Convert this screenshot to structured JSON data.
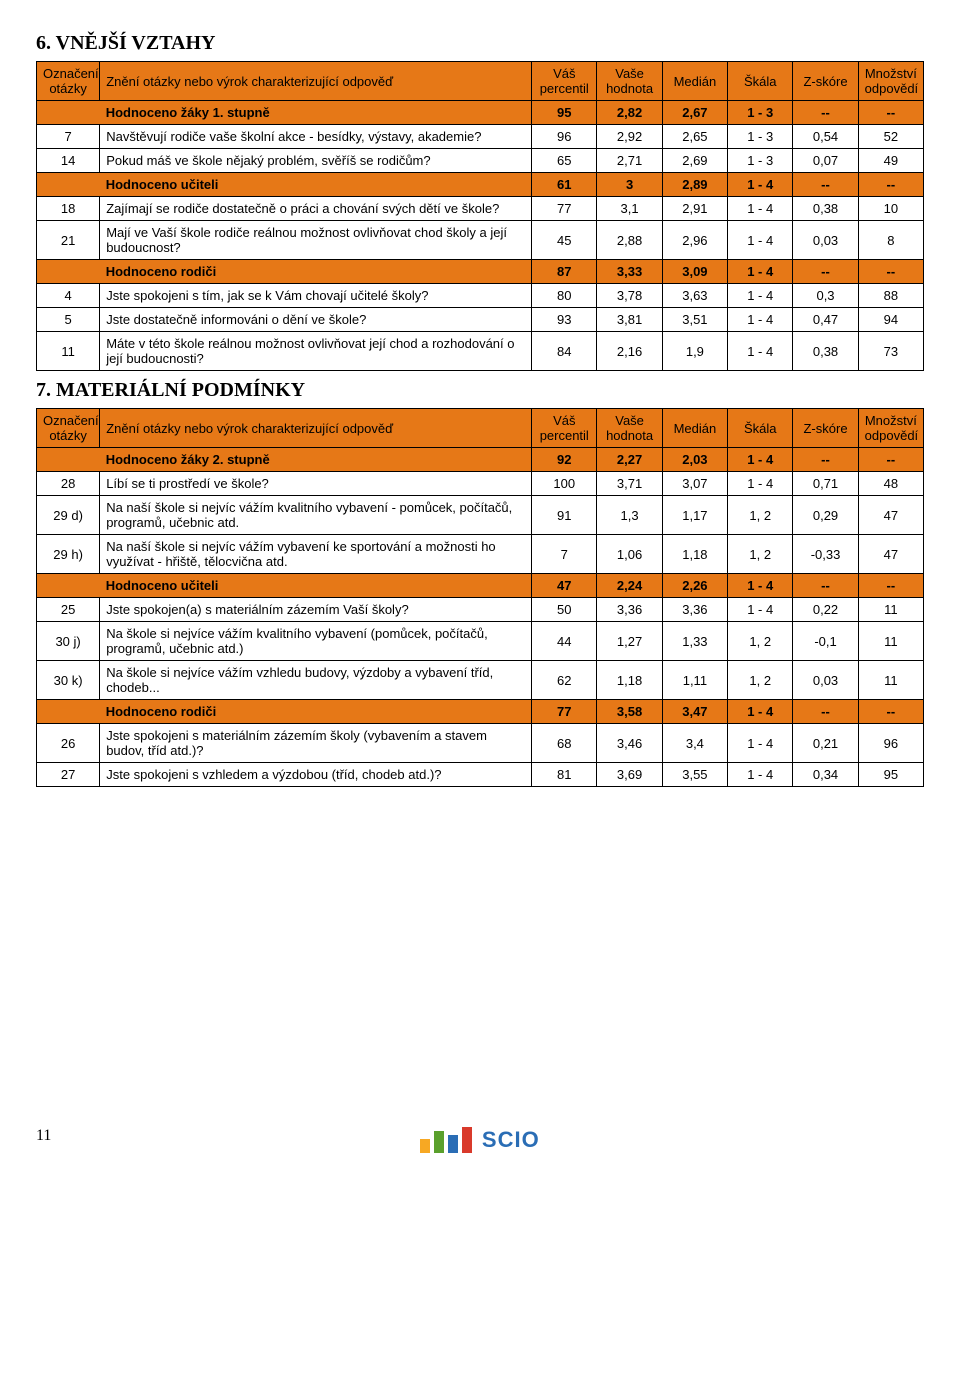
{
  "page_number": "11",
  "logo_text": "SCIO",
  "logo_bar_colors": [
    "#f7a823",
    "#5aa02c",
    "#2a6db5",
    "#d93a2b"
  ],
  "logo_bar_heights": [
    14,
    22,
    18,
    26
  ],
  "tables": [
    {
      "title": "6. VNĚJŠÍ VZTAHY",
      "headers": [
        "Označení otázky",
        "Znění otázky nebo výrok charakterizující odpověď",
        "Váš percentil",
        "Vaše hodnota",
        "Medián",
        "Škála",
        "Z-skóre",
        "Množství odpovědí"
      ],
      "rows": [
        {
          "type": "sub",
          "mark": "",
          "text": "Hodnoceno žáky 1. stupně",
          "c": [
            "95",
            "2,82",
            "2,67",
            "1 - 3",
            "--",
            "--"
          ]
        },
        {
          "type": "data",
          "mark": "7",
          "text": "Navštěvují rodiče vaše školní akce - besídky, výstavy, akademie?",
          "c": [
            "96",
            "2,92",
            "2,65",
            "1 - 3",
            "0,54",
            "52"
          ]
        },
        {
          "type": "data",
          "mark": "14",
          "text": "Pokud máš ve škole nějaký problém, svěříš se rodičům?",
          "c": [
            "65",
            "2,71",
            "2,69",
            "1 - 3",
            "0,07",
            "49"
          ]
        },
        {
          "type": "sub",
          "mark": "",
          "text": "Hodnoceno učiteli",
          "c": [
            "61",
            "3",
            "2,89",
            "1 - 4",
            "--",
            "--"
          ]
        },
        {
          "type": "data",
          "mark": "18",
          "text": "Zajímají se rodiče dostatečně o práci a chování svých dětí ve škole?",
          "c": [
            "77",
            "3,1",
            "2,91",
            "1 - 4",
            "0,38",
            "10"
          ]
        },
        {
          "type": "data",
          "mark": "21",
          "text": "Mají ve Vaší škole rodiče reálnou možnost ovlivňovat chod školy a její budoucnost?",
          "c": [
            "45",
            "2,88",
            "2,96",
            "1 - 4",
            "0,03",
            "8"
          ]
        },
        {
          "type": "sub",
          "mark": "",
          "text": "Hodnoceno rodiči",
          "c": [
            "87",
            "3,33",
            "3,09",
            "1 - 4",
            "--",
            "--"
          ]
        },
        {
          "type": "data",
          "mark": "4",
          "text": "Jste spokojeni s tím, jak se k Vám chovají učitelé školy?",
          "c": [
            "80",
            "3,78",
            "3,63",
            "1 - 4",
            "0,3",
            "88"
          ]
        },
        {
          "type": "data",
          "mark": "5",
          "text": "Jste dostatečně informováni o dění ve škole?",
          "c": [
            "93",
            "3,81",
            "3,51",
            "1 - 4",
            "0,47",
            "94"
          ]
        },
        {
          "type": "data",
          "mark": "11",
          "text": "Máte v této škole reálnou možnost ovlivňovat její chod a rozhodování o její budoucnosti?",
          "c": [
            "84",
            "2,16",
            "1,9",
            "1 - 4",
            "0,38",
            "73"
          ]
        }
      ]
    },
    {
      "title": "7. MATERIÁLNÍ PODMÍNKY",
      "headers": [
        "Označení otázky",
        "Znění otázky nebo výrok charakterizující odpověď",
        "Váš percentil",
        "Vaše hodnota",
        "Medián",
        "Škála",
        "Z-skóre",
        "Množství odpovědí"
      ],
      "rows": [
        {
          "type": "sub",
          "mark": "",
          "text": "Hodnoceno žáky 2. stupně",
          "c": [
            "92",
            "2,27",
            "2,03",
            "1 - 4",
            "--",
            "--"
          ]
        },
        {
          "type": "data",
          "mark": "28",
          "text": "Líbí se ti prostředí ve škole?",
          "c": [
            "100",
            "3,71",
            "3,07",
            "1 - 4",
            "0,71",
            "48"
          ]
        },
        {
          "type": "data",
          "mark": "29 d)",
          "text": "Na naší škole si nejvíc vážím kvalitního vybavení - pomůcek, počítačů, programů, učebnic atd.",
          "c": [
            "91",
            "1,3",
            "1,17",
            "1, 2",
            "0,29",
            "47"
          ]
        },
        {
          "type": "data",
          "mark": "29 h)",
          "text": "Na naší škole si nejvíc vážím vybavení ke sportování a možnosti ho využívat - hřiště, tělocvična atd.",
          "c": [
            "7",
            "1,06",
            "1,18",
            "1, 2",
            "-0,33",
            "47"
          ]
        },
        {
          "type": "sub",
          "mark": "",
          "text": "Hodnoceno učiteli",
          "c": [
            "47",
            "2,24",
            "2,26",
            "1 - 4",
            "--",
            "--"
          ]
        },
        {
          "type": "data",
          "mark": "25",
          "text": "Jste spokojen(a) s materiálním zázemím Vaší školy?",
          "c": [
            "50",
            "3,36",
            "3,36",
            "1 - 4",
            "0,22",
            "11"
          ]
        },
        {
          "type": "data",
          "mark": "30 j)",
          "text": "Na škole si nejvíce vážím kvalitního vybavení (pomůcek, počítačů, programů, učebnic atd.)",
          "c": [
            "44",
            "1,27",
            "1,33",
            "1, 2",
            "-0,1",
            "11"
          ]
        },
        {
          "type": "data",
          "mark": "30 k)",
          "text": "Na škole si nejvíce vážím vzhledu budovy, výzdoby a vybavení tříd, chodeb...",
          "c": [
            "62",
            "1,18",
            "1,11",
            "1, 2",
            "0,03",
            "11"
          ]
        },
        {
          "type": "sub",
          "mark": "",
          "text": "Hodnoceno rodiči",
          "c": [
            "77",
            "3,58",
            "3,47",
            "1 - 4",
            "--",
            "--"
          ]
        },
        {
          "type": "data",
          "mark": "26",
          "text": "Jste spokojeni s materiálním zázemím školy (vybavením a stavem budov, tříd atd.)?",
          "c": [
            "68",
            "3,46",
            "3,4",
            "1 - 4",
            "0,21",
            "96"
          ]
        },
        {
          "type": "data",
          "mark": "27",
          "text": "Jste spokojeni s vzhledem a výzdobou (tříd, chodeb atd.)?",
          "c": [
            "81",
            "3,69",
            "3,55",
            "1 - 4",
            "0,34",
            "95"
          ]
        }
      ]
    }
  ]
}
